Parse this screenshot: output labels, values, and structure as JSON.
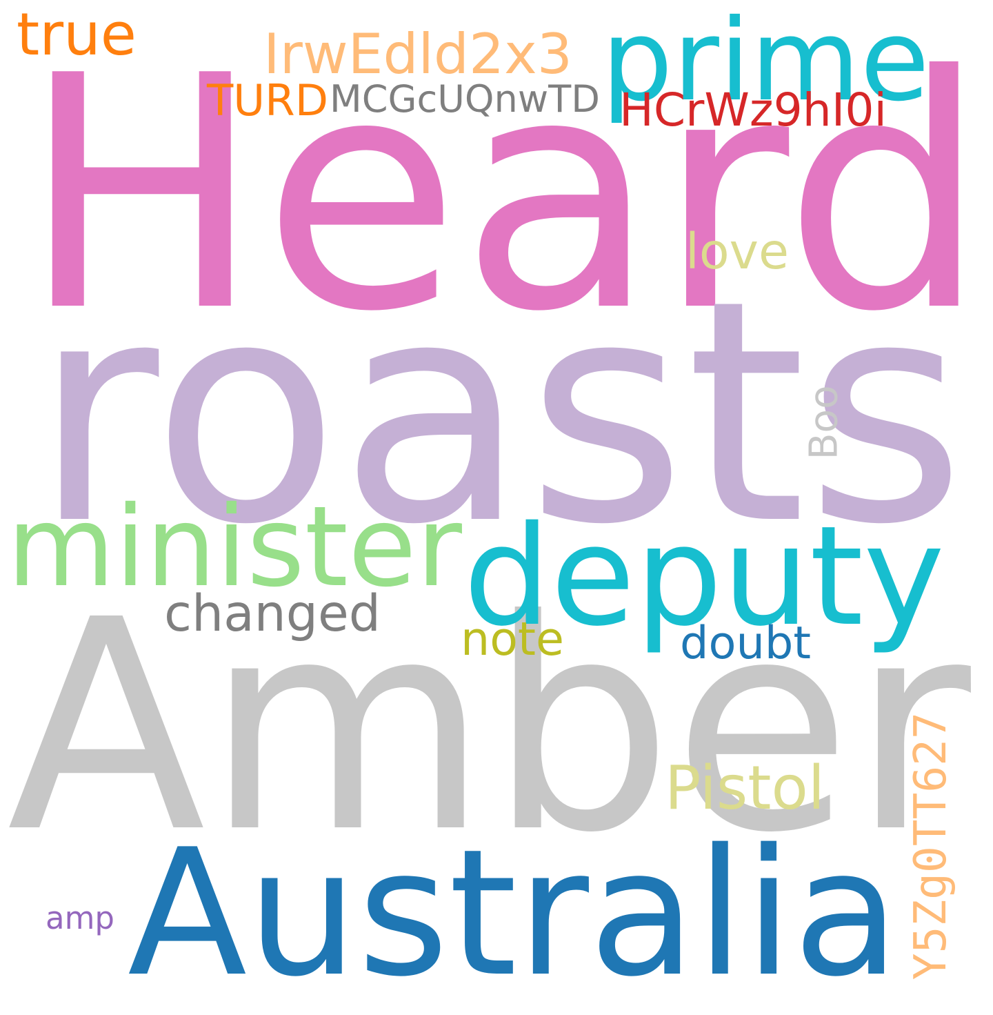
{
  "words": [
    {
      "id": "heard",
      "text": "Heard",
      "color": "#e377c2"
    },
    {
      "id": "roasts",
      "text": "roasts",
      "color": "#c5b0d5"
    },
    {
      "id": "amber",
      "text": "Amber",
      "color": "#c7c7c7"
    },
    {
      "id": "australia",
      "text": "Australia",
      "color": "#1f77b4"
    },
    {
      "id": "deputy",
      "text": "deputy",
      "color": "#17becf"
    },
    {
      "id": "minister",
      "text": "minister",
      "color": "#98df8a"
    },
    {
      "id": "prime",
      "text": "prime",
      "color": "#17becf"
    },
    {
      "id": "true",
      "text": "true",
      "color": "#ff7f0e"
    },
    {
      "id": "irwedld2x3",
      "text": "IrwEdld2x3",
      "color": "#ffbb78"
    },
    {
      "id": "turd",
      "text": "TURD",
      "color": "#ff7f0e"
    },
    {
      "id": "mcgcuqnwtd",
      "text": "MCGcUQnwTD",
      "color": "#7f7f7f"
    },
    {
      "id": "hcrwz9hi0i",
      "text": "HCrWz9hI0i",
      "color": "#d62728"
    },
    {
      "id": "love",
      "text": "love",
      "color": "#dbdb8d"
    },
    {
      "id": "boo",
      "text": "Boo",
      "color": "#c7c7c7"
    },
    {
      "id": "changed",
      "text": "changed",
      "color": "#7f7f7f"
    },
    {
      "id": "note",
      "text": "note",
      "color": "#bcbd22"
    },
    {
      "id": "doubt",
      "text": "doubt",
      "color": "#1f77b4"
    },
    {
      "id": "pistol",
      "text": "Pistol",
      "color": "#dbdb8d"
    },
    {
      "id": "y5zg0tt627",
      "text": "Y5Zg0TT627",
      "color": "#ffbb78"
    },
    {
      "id": "amp",
      "text": "amp",
      "color": "#9467bd"
    }
  ]
}
